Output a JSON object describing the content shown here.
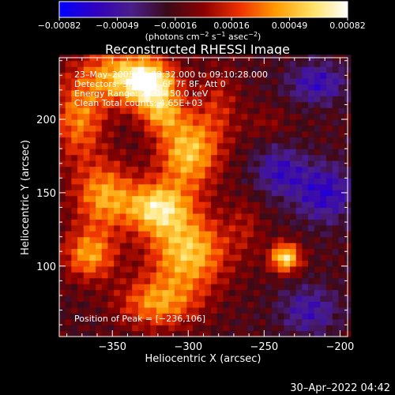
{
  "chart_data": {
    "type": "heatmap",
    "title": "Reconstructed RHESSI Image",
    "xlabel": "Heliocentric X (arcsec)",
    "ylabel": "Heliocentric Y (arcsec)",
    "xlim": [
      -385,
      -195
    ],
    "ylim": [
      52,
      242
    ],
    "x_ticks": [
      -350,
      -300,
      -250,
      -200
    ],
    "x_tick_labels": [
      "−350",
      "−300",
      "−250",
      "−200"
    ],
    "y_ticks": [
      100,
      150,
      200
    ],
    "y_tick_labels": [
      "100",
      "150",
      "200"
    ],
    "colorbar": {
      "range": [
        -0.00082,
        0.00082
      ],
      "tick_values": [
        -0.00082,
        -0.00049,
        -0.00016,
        0.00016,
        0.00049,
        0.00082
      ],
      "tick_labels": [
        "−0.00082",
        "−0.00049",
        "−0.00016",
        "0.00016",
        "0.00049",
        "0.00082"
      ],
      "unit_text": "(photons cm",
      "unit_sup1": "−2",
      "unit_mid1": " s",
      "unit_sup2": "−1",
      "unit_mid2": " asec",
      "unit_sup3": "−2",
      "unit_end": ")",
      "colorscale": [
        "#0000ff",
        "#3000c0",
        "#4a1e8a",
        "#3a0a18",
        "#8a0000",
        "#ee3000",
        "#ff9a00",
        "#ffe060",
        "#ffffff"
      ]
    },
    "info_lines": [
      "23–May–2005 09:08:32.000 to 09:10:28.000",
      "Detectors: 3F 4F 5F 6F 7F 8F, Att 0",
      "Energy Range: 25.0 – 50.0 keV",
      "Clean     Total counts: 4.65E+03"
    ],
    "peak_text": "Position of Peak = [−236,106]",
    "peak": {
      "x": -236,
      "y": 106
    },
    "sources": [
      {
        "x": -345,
        "y": 230,
        "sx": 18,
        "sy": 14,
        "amp": 0.0006
      },
      {
        "x": -325,
        "y": 225,
        "sx": 12,
        "sy": 10,
        "amp": 0.00078
      },
      {
        "x": -372,
        "y": 200,
        "sx": 12,
        "sy": 20,
        "amp": 0.0005
      },
      {
        "x": -300,
        "y": 178,
        "sx": 14,
        "sy": 18,
        "amp": 0.0007
      },
      {
        "x": -318,
        "y": 205,
        "sx": 10,
        "sy": 10,
        "amp": 0.0005
      },
      {
        "x": -355,
        "y": 148,
        "sx": 14,
        "sy": 16,
        "amp": 0.0006
      },
      {
        "x": -320,
        "y": 140,
        "sx": 14,
        "sy": 12,
        "amp": 0.00076
      },
      {
        "x": -300,
        "y": 110,
        "sx": 18,
        "sy": 18,
        "amp": 0.00072
      },
      {
        "x": -365,
        "y": 108,
        "sx": 12,
        "sy": 12,
        "amp": 0.00058
      },
      {
        "x": -320,
        "y": 75,
        "sx": 18,
        "sy": 12,
        "amp": 0.00055
      },
      {
        "x": -280,
        "y": 210,
        "sx": 10,
        "sy": 18,
        "amp": 0.00025
      },
      {
        "x": -236,
        "y": 106,
        "sx": 7,
        "sy": 7,
        "amp": 0.00082
      },
      {
        "x": -248,
        "y": 198,
        "sx": 10,
        "sy": 8,
        "amp": 0.00014
      },
      {
        "x": -262,
        "y": 128,
        "sx": 8,
        "sy": 14,
        "amp": 0.00018
      },
      {
        "x": -215,
        "y": 225,
        "sx": 14,
        "sy": 10,
        "amp": -0.0004
      },
      {
        "x": -210,
        "y": 150,
        "sx": 14,
        "sy": 14,
        "amp": -0.00045
      },
      {
        "x": -240,
        "y": 165,
        "sx": 12,
        "sy": 12,
        "amp": -0.00038
      },
      {
        "x": -220,
        "y": 70,
        "sx": 14,
        "sy": 12,
        "amp": -0.00035
      }
    ],
    "background": -0.00016,
    "grid": false
  },
  "timestamp": "30–Apr–2022 04:42"
}
